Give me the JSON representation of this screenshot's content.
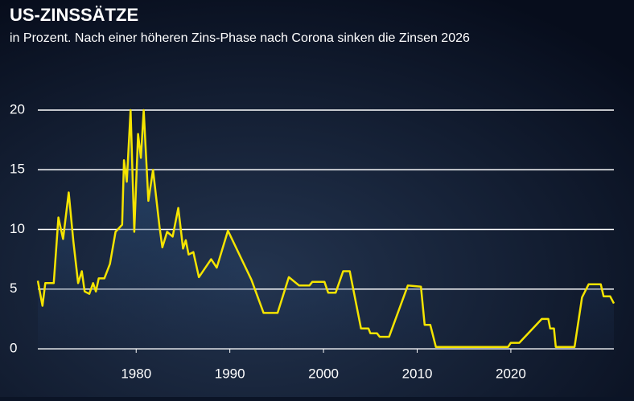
{
  "chart_data": {
    "type": "line",
    "title": "US-ZINSSÄTZE",
    "subtitle": "in Prozent. Nach einer höheren Zins-Phase nach Corona sinken die Zinsen 2026",
    "x": [
      1969.5,
      1970,
      1970.3,
      1971.2,
      1971.7,
      1972.2,
      1972.8,
      1973.3,
      1973.8,
      1974.2,
      1974.5,
      1975,
      1975.4,
      1975.7,
      1976,
      1976.6,
      1977.2,
      1977.8,
      1978.5,
      1978.7,
      1979,
      1979.4,
      1979.8,
      1980.2,
      1980.5,
      1980.8,
      1981.3,
      1981.8,
      1982.5,
      1982.8,
      1983.3,
      1983.9,
      1984.5,
      1985,
      1985.3,
      1985.6,
      1986.1,
      1986.7,
      1988,
      1988.6,
      1989.8,
      1992.3,
      1993.6,
      1995.1,
      1996.3,
      1997.4,
      1998.5,
      1998.8,
      2000.1,
      2000.5,
      2001.3,
      2002.1,
      2002.8,
      2004,
      2004.8,
      2005,
      2005.7,
      2006,
      2007,
      2009,
      2010.4,
      2010.8,
      2011.4,
      2012,
      2019.7,
      2020,
      2020.9,
      2023.3,
      2024,
      2024.2,
      2024.6,
      2024.8,
      2026.8,
      2027.6,
      2028.3,
      2029.6,
      2029.9,
      2030.6,
      2031
    ],
    "series": [
      {
        "color": "#f5e400",
        "values": [
          5.7,
          3.6,
          5.5,
          5.5,
          11,
          9.2,
          13.1,
          9,
          5.5,
          6.5,
          4.8,
          4.6,
          5.5,
          4.8,
          5.9,
          5.9,
          7.1,
          9.8,
          10.4,
          15.8,
          14,
          20,
          9.8,
          18,
          16,
          20,
          12.4,
          15,
          10.2,
          8.5,
          9.8,
          9.4,
          11.8,
          8.4,
          9.1,
          7.9,
          8.1,
          6,
          7.5,
          6.8,
          9.9,
          5.8,
          3,
          3,
          6,
          5.3,
          5.3,
          5.6,
          5.6,
          4.7,
          4.7,
          6.5,
          6.5,
          1.7,
          1.7,
          1.3,
          1.3,
          1,
          1,
          5.3,
          5.2,
          2,
          2,
          0.15,
          0.15,
          0.5,
          0.5,
          2.5,
          2.5,
          1.7,
          1.7,
          0.15,
          0.15,
          4.3,
          5.4,
          5.4,
          4.4,
          4.4,
          3.8
        ]
      }
    ],
    "xlim": [
      1969.5,
      2031
    ],
    "xticks": [
      1980,
      1990,
      2000,
      2010,
      2020
    ],
    "ylim": [
      0,
      20
    ],
    "yticks": [
      0,
      5,
      10,
      15,
      20
    ],
    "grid": true
  }
}
